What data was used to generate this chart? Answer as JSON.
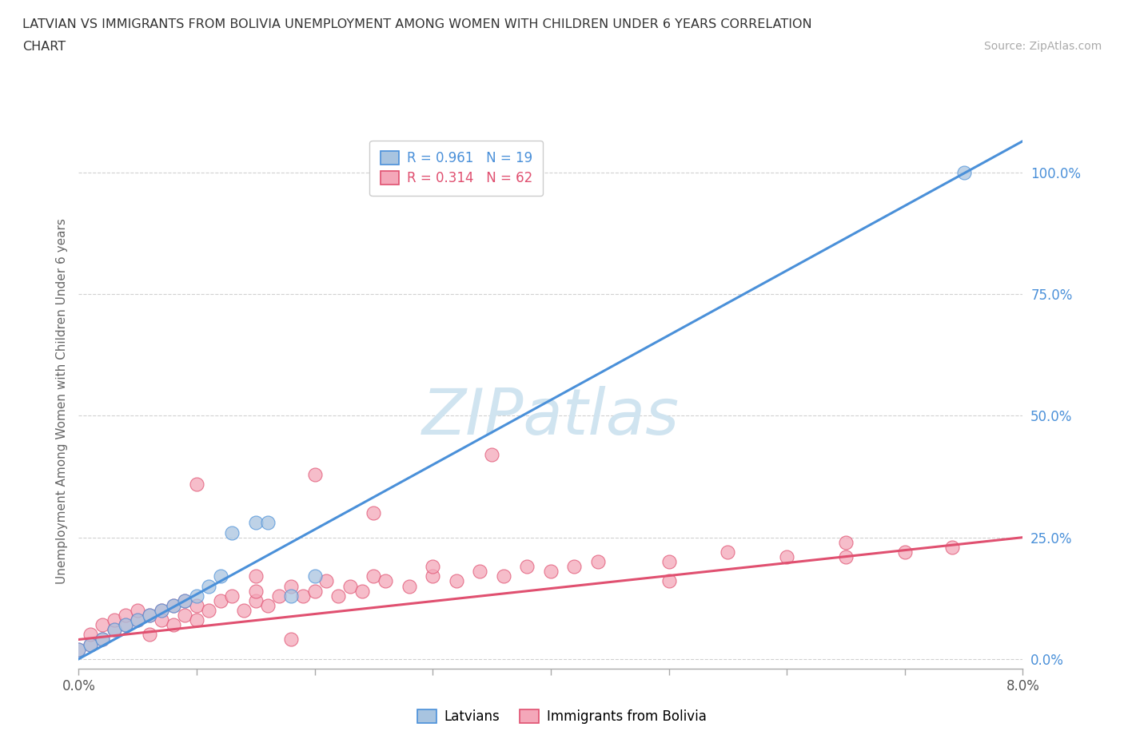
{
  "title_line1": "LATVIAN VS IMMIGRANTS FROM BOLIVIA UNEMPLOYMENT AMONG WOMEN WITH CHILDREN UNDER 6 YEARS CORRELATION",
  "title_line2": "CHART",
  "source_text": "Source: ZipAtlas.com",
  "ylabel": "Unemployment Among Women with Children Under 6 years",
  "xlim": [
    0.0,
    0.08
  ],
  "ylim": [
    -0.02,
    1.08
  ],
  "yticks": [
    0.0,
    0.25,
    0.5,
    0.75,
    1.0
  ],
  "ytick_labels": [
    "0.0%",
    "25.0%",
    "50.0%",
    "75.0%",
    "100.0%"
  ],
  "xticks": [
    0.0,
    0.01,
    0.02,
    0.03,
    0.04,
    0.05,
    0.06,
    0.07,
    0.08
  ],
  "xtick_labels": [
    "0.0%",
    "",
    "",
    "",
    "",
    "",
    "",
    "",
    "8.0%"
  ],
  "latvian_R": 0.961,
  "latvian_N": 19,
  "bolivia_R": 0.314,
  "bolivia_N": 62,
  "latvian_color": "#a8c4e0",
  "latvian_line_color": "#4a90d9",
  "bolivia_color": "#f4a7b9",
  "bolivia_line_color": "#e05070",
  "watermark_color": "#d0e4f0",
  "background_color": "#ffffff",
  "latvian_scatter_x": [
    0.0,
    0.001,
    0.002,
    0.003,
    0.004,
    0.005,
    0.006,
    0.007,
    0.008,
    0.009,
    0.01,
    0.011,
    0.012,
    0.013,
    0.015,
    0.016,
    0.018,
    0.02,
    0.075
  ],
  "latvian_scatter_y": [
    0.02,
    0.03,
    0.04,
    0.06,
    0.07,
    0.08,
    0.09,
    0.1,
    0.11,
    0.12,
    0.13,
    0.15,
    0.17,
    0.26,
    0.28,
    0.28,
    0.13,
    0.17,
    1.0
  ],
  "bolivia_scatter_x": [
    0.0,
    0.001,
    0.001,
    0.002,
    0.002,
    0.003,
    0.003,
    0.004,
    0.004,
    0.005,
    0.005,
    0.006,
    0.006,
    0.007,
    0.007,
    0.008,
    0.008,
    0.009,
    0.009,
    0.01,
    0.01,
    0.011,
    0.012,
    0.013,
    0.014,
    0.015,
    0.015,
    0.016,
    0.017,
    0.018,
    0.018,
    0.019,
    0.02,
    0.021,
    0.022,
    0.023,
    0.024,
    0.025,
    0.026,
    0.028,
    0.03,
    0.032,
    0.034,
    0.036,
    0.038,
    0.04,
    0.042,
    0.044,
    0.05,
    0.055,
    0.06,
    0.065,
    0.07,
    0.074,
    0.01,
    0.015,
    0.02,
    0.025,
    0.03,
    0.035,
    0.05,
    0.065
  ],
  "bolivia_scatter_y": [
    0.02,
    0.03,
    0.05,
    0.04,
    0.07,
    0.06,
    0.08,
    0.07,
    0.09,
    0.08,
    0.1,
    0.05,
    0.09,
    0.1,
    0.08,
    0.07,
    0.11,
    0.09,
    0.12,
    0.08,
    0.11,
    0.1,
    0.12,
    0.13,
    0.1,
    0.12,
    0.14,
    0.11,
    0.13,
    0.04,
    0.15,
    0.13,
    0.14,
    0.16,
    0.13,
    0.15,
    0.14,
    0.17,
    0.16,
    0.15,
    0.17,
    0.16,
    0.18,
    0.17,
    0.19,
    0.18,
    0.19,
    0.2,
    0.2,
    0.22,
    0.21,
    0.24,
    0.22,
    0.23,
    0.36,
    0.17,
    0.38,
    0.3,
    0.19,
    0.42,
    0.16,
    0.21
  ],
  "lv_line_x0": 0.0,
  "lv_line_y0": 0.0,
  "lv_line_x1": 0.08,
  "lv_line_y1": 1.065,
  "bo_line_x0": 0.0,
  "bo_line_y0": 0.04,
  "bo_line_x1": 0.08,
  "bo_line_y1": 0.25
}
